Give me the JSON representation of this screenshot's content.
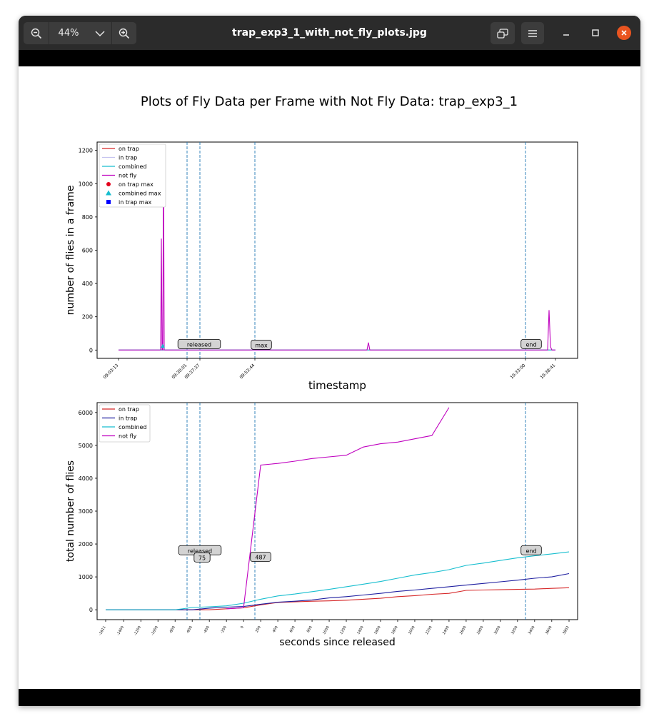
{
  "window": {
    "title": "trap_exp3_1_with_not_fly_plots.jpg",
    "zoom_level": "44%"
  },
  "icons": {
    "zoom_out": "zoom-out-icon",
    "zoom_dropdown": "chevron-down-icon",
    "zoom_in": "zoom-in-icon",
    "fit": "fit-window-icon",
    "menu": "hamburger-menu-icon",
    "minimize": "minimize-icon",
    "maximize": "maximize-icon",
    "close": "close-icon"
  },
  "colors": {
    "on_trap": "#d62728",
    "in_trap_top": "#c5c3ef",
    "in_trap_bottom": "#1f1fa0",
    "combined": "#17becf",
    "not_fly": "#bf00bf",
    "vline": "#1f77b4"
  },
  "image": {
    "suptitle": "Plots of Fly Data per Frame with Not Fly Data: trap_exp3_1"
  },
  "chart_data": [
    {
      "type": "line",
      "xlabel": "timestamp",
      "ylabel": "number of flies in a frame",
      "ylim": [
        -50,
        1250
      ],
      "yticks": [
        0,
        200,
        400,
        600,
        800,
        1000,
        1200
      ],
      "xticks": [
        "09:03:13",
        "09:30:01",
        "09:37:37",
        "09:53:44",
        "10:33:00",
        "10:38:41"
      ],
      "legend": [
        "on trap",
        "in trap",
        "combined",
        "not fly",
        "on trap max",
        "combined max",
        "in trap max"
      ],
      "legend_position": "top-left",
      "annotations": [
        "released",
        "max",
        "end"
      ],
      "series": [
        {
          "name": "on trap",
          "values": [
            0,
            0,
            0,
            0,
            0,
            0,
            0,
            0,
            0,
            0,
            0,
            0,
            0,
            0,
            0,
            0,
            0,
            0,
            0,
            0,
            0,
            0,
            0,
            0,
            0,
            0,
            0,
            0,
            0,
            0,
            0,
            0,
            0,
            0,
            0,
            0
          ]
        },
        {
          "name": "in trap",
          "values": [
            0,
            0,
            0,
            0,
            0,
            0,
            0,
            0,
            0,
            0,
            0,
            0,
            0,
            0,
            0,
            0,
            0,
            0,
            0,
            0,
            0,
            0,
            0,
            0,
            0,
            0,
            0,
            0,
            0,
            0,
            0,
            0,
            0,
            0,
            0,
            0
          ]
        },
        {
          "name": "combined",
          "values": [
            0,
            0,
            0,
            0,
            0,
            0,
            0,
            0,
            0,
            0,
            0,
            0,
            0,
            0,
            0,
            0,
            0,
            0,
            0,
            0,
            0,
            0,
            0,
            0,
            0,
            0,
            0,
            0,
            0,
            0,
            0,
            0,
            0,
            0,
            0,
            0
          ]
        },
        {
          "name": "not fly",
          "values": [
            0,
            0,
            0,
            0,
            0,
            0,
            0,
            0,
            0,
            0,
            0,
            0,
            0,
            0,
            0,
            0,
            0,
            0,
            0,
            0,
            0,
            0,
            0,
            0,
            0,
            0,
            0,
            0,
            0,
            0,
            0,
            0,
            0,
            0,
            0,
            0
          ]
        }
      ],
      "spikes": [
        {
          "x": "09:19",
          "value": 670
        },
        {
          "x": "09:19",
          "value": 1210
        },
        {
          "x": "10:06",
          "value": 45
        },
        {
          "x": "10:37",
          "value": 240
        }
      ]
    },
    {
      "type": "line",
      "xlabel": "seconds since released",
      "ylabel": "total number of flies",
      "ylim": [
        -300,
        6300
      ],
      "yticks": [
        0,
        1000,
        2000,
        3000,
        4000,
        5000,
        6000
      ],
      "x": [
        -1611,
        -1400,
        -1200,
        -1000,
        -800,
        -600,
        -400,
        -200,
        0,
        200,
        400,
        600,
        800,
        1000,
        1200,
        1400,
        1600,
        1800,
        2000,
        2200,
        2400,
        2600,
        2800,
        3000,
        3200,
        3400,
        3600,
        3802
      ],
      "xticks_rotated": true,
      "legend": [
        "on trap",
        "in trap",
        "combined",
        "not fly"
      ],
      "legend_position": "top-left",
      "annotations": [
        "released",
        "75",
        "487",
        "end"
      ],
      "series": [
        {
          "name": "on trap",
          "values": [
            0,
            0,
            0,
            0,
            0,
            0,
            0,
            30,
            60,
            150,
            220,
            240,
            260,
            270,
            290,
            320,
            350,
            400,
            430,
            470,
            500,
            590,
            600,
            610,
            620,
            630,
            650,
            670
          ]
        },
        {
          "name": "in trap",
          "values": [
            0,
            0,
            0,
            0,
            0,
            0,
            50,
            80,
            100,
            170,
            230,
            260,
            300,
            360,
            400,
            450,
            500,
            560,
            600,
            650,
            700,
            750,
            800,
            850,
            900,
            960,
            1000,
            1100
          ]
        },
        {
          "name": "combined",
          "values": [
            0,
            0,
            0,
            0,
            0,
            70,
            90,
            120,
            200,
            320,
            420,
            480,
            550,
            620,
            700,
            780,
            860,
            960,
            1060,
            1130,
            1220,
            1350,
            1420,
            1500,
            1580,
            1640,
            1700,
            1760
          ]
        },
        {
          "name": "not fly",
          "values": [
            null,
            null,
            null,
            null,
            null,
            null,
            null,
            30,
            60,
            4400,
            4450,
            4520,
            4600,
            4650,
            4700,
            4950,
            5050,
            5100,
            5200,
            5300,
            6150,
            null,
            null,
            null,
            null,
            null,
            null,
            null
          ]
        }
      ]
    }
  ]
}
